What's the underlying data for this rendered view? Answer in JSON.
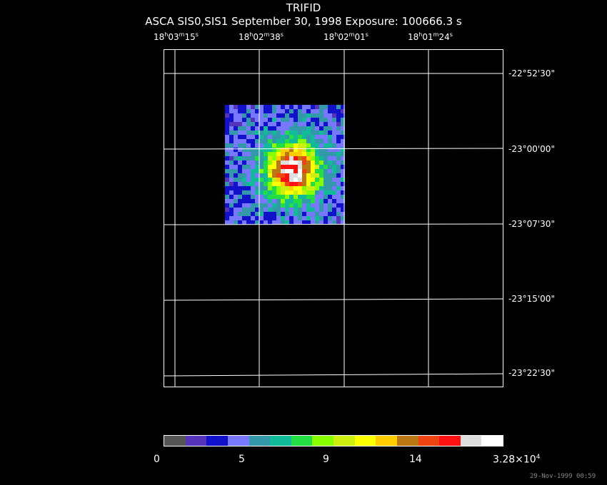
{
  "header": {
    "title": "TRIFID",
    "subtitle": "ASCA SIS0,SIS1 September 30, 1998 Exposure: 100666.3 s"
  },
  "ra_ticks": [
    {
      "h": "18",
      "m": "03",
      "s": "15"
    },
    {
      "h": "18",
      "m": "02",
      "s": "38"
    },
    {
      "h": "18",
      "m": "02",
      "s": "01"
    },
    {
      "h": "18",
      "m": "01",
      "s": "24"
    }
  ],
  "dec_ticks": [
    "-22°52'30\"",
    "-23°00'00\"",
    "-23°07'30\"",
    "-23°15'00\"",
    "-23°22'30\""
  ],
  "colorbar": {
    "colors": [
      "#555555",
      "#5533bb",
      "#1111cc",
      "#7777ff",
      "#3399aa",
      "#11bb99",
      "#22dd44",
      "#88ff00",
      "#ccee11",
      "#ffff00",
      "#ffcc00",
      "#bb7711",
      "#ee4411",
      "#ff1111",
      "#dddddd",
      "#ffffff"
    ],
    "labels": {
      "l0": "0",
      "l1": "5",
      "l2": "9",
      "l3": "14",
      "max_mantissa": "3.28×10",
      "max_exp": "4"
    }
  },
  "timestamp": "29-Nov-1999 00:59"
}
